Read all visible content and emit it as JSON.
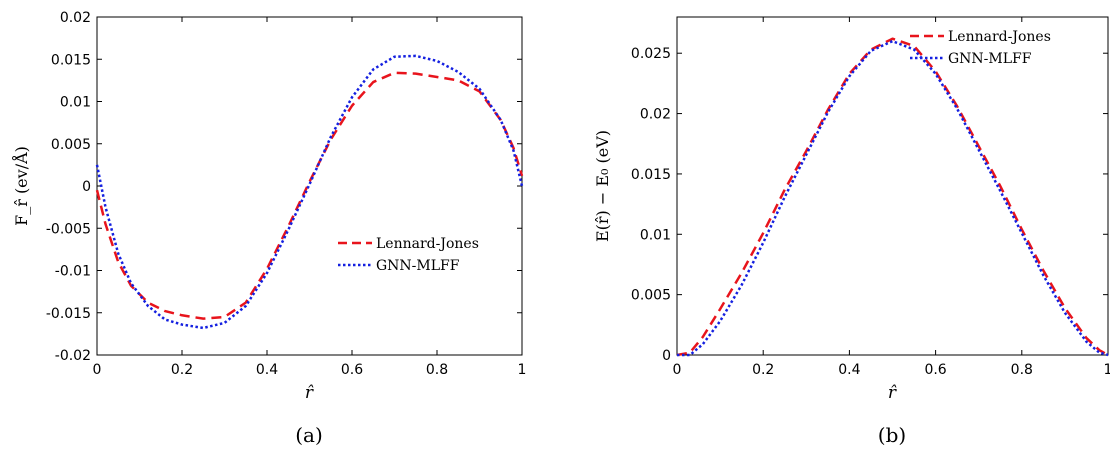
{
  "chart_data": [
    {
      "type": "line",
      "caption": "(a)",
      "xlabel": "r̂",
      "ylabel": "F_r̂ (ev/Å)",
      "xlim": [
        0,
        1
      ],
      "ylim": [
        -0.02,
        0.02
      ],
      "xticks": [
        0,
        0.2,
        0.4,
        0.6,
        0.8,
        1
      ],
      "xtick_labels": [
        "0",
        "0.2",
        "0.4",
        "0.6",
        "0.8",
        "1"
      ],
      "yticks": [
        -0.02,
        -0.015,
        -0.01,
        -0.005,
        0,
        0.005,
        0.01,
        0.015,
        0.02
      ],
      "ytick_labels": [
        "-0.02",
        "-0.015",
        "-0.01",
        "-0.005",
        "0",
        "0.005",
        "0.01",
        "0.015",
        "0.02"
      ],
      "legend_position": "center-right",
      "series": [
        {
          "name": "Lennard-Jones",
          "color": "#e8141c",
          "style": "dashed",
          "x": [
            0,
            0.02,
            0.05,
            0.08,
            0.12,
            0.16,
            0.2,
            0.25,
            0.3,
            0.35,
            0.4,
            0.45,
            0.5,
            0.55,
            0.6,
            0.65,
            0.7,
            0.75,
            0.8,
            0.85,
            0.9,
            0.95,
            0.98,
            1.0
          ],
          "y": [
            -0.0005,
            -0.0045,
            -0.009,
            -0.0118,
            -0.0138,
            -0.0148,
            -0.0153,
            -0.0157,
            -0.0155,
            -0.0138,
            -0.0098,
            -0.0048,
            0.0005,
            0.0055,
            0.0095,
            0.0123,
            0.0134,
            0.0133,
            0.0129,
            0.0125,
            0.0112,
            0.0078,
            0.0045,
            0.0012
          ]
        },
        {
          "name": "GNN-MLFF",
          "color": "#1420e0",
          "style": "dotted",
          "x": [
            0,
            0.02,
            0.05,
            0.08,
            0.12,
            0.16,
            0.2,
            0.25,
            0.3,
            0.35,
            0.4,
            0.45,
            0.5,
            0.55,
            0.6,
            0.65,
            0.7,
            0.75,
            0.8,
            0.85,
            0.9,
            0.95,
            0.98,
            1.0
          ],
          "y": [
            0.0025,
            -0.0025,
            -0.008,
            -0.0115,
            -0.0142,
            -0.0158,
            -0.0164,
            -0.0168,
            -0.0162,
            -0.0142,
            -0.0103,
            -0.0052,
            0.0002,
            0.0058,
            0.0105,
            0.0138,
            0.0153,
            0.0154,
            0.0148,
            0.0135,
            0.0115,
            0.0078,
            0.0042,
            0.0
          ]
        }
      ]
    },
    {
      "type": "line",
      "caption": "(b)",
      "xlabel": "r̂",
      "ylabel": "E(r̂) − E₀ (eV)",
      "xlim": [
        0,
        1
      ],
      "ylim": [
        0,
        0.028
      ],
      "xticks": [
        0,
        0.2,
        0.4,
        0.6,
        0.8,
        1
      ],
      "xtick_labels": [
        "0",
        "0.2",
        "0.4",
        "0.6",
        "0.8",
        "1"
      ],
      "yticks": [
        0,
        0.005,
        0.01,
        0.015,
        0.02,
        0.025
      ],
      "ytick_labels": [
        "0",
        "0.005",
        "0.01",
        "0.015",
        "0.02",
        "0.025"
      ],
      "legend_position": "top-right",
      "series": [
        {
          "name": "Lennard-Jones",
          "color": "#e8141c",
          "style": "dashed",
          "x": [
            0,
            0.03,
            0.06,
            0.1,
            0.15,
            0.2,
            0.25,
            0.3,
            0.35,
            0.4,
            0.45,
            0.5,
            0.55,
            0.6,
            0.65,
            0.7,
            0.75,
            0.8,
            0.85,
            0.9,
            0.95,
            0.98,
            1.0
          ],
          "y": [
            0,
            0.0002,
            0.0015,
            0.0038,
            0.0068,
            0.0101,
            0.0137,
            0.0169,
            0.0203,
            0.0233,
            0.0253,
            0.0262,
            0.0256,
            0.0235,
            0.0206,
            0.0173,
            0.014,
            0.0104,
            0.007,
            0.0039,
            0.0014,
            0.0004,
            0.0
          ]
        },
        {
          "name": "GNN-MLFF",
          "color": "#1420e0",
          "style": "dotted",
          "x": [
            0,
            0.03,
            0.06,
            0.1,
            0.15,
            0.2,
            0.25,
            0.3,
            0.35,
            0.4,
            0.45,
            0.5,
            0.55,
            0.6,
            0.65,
            0.7,
            0.75,
            0.8,
            0.85,
            0.9,
            0.95,
            0.98,
            1.0
          ],
          "y": [
            0,
            0.0,
            0.0009,
            0.0028,
            0.0058,
            0.0093,
            0.0131,
            0.0166,
            0.0201,
            0.0231,
            0.0252,
            0.026,
            0.0253,
            0.0233,
            0.0204,
            0.017,
            0.0136,
            0.0101,
            0.0066,
            0.0035,
            0.0011,
            0.0002,
            0.0
          ]
        }
      ]
    }
  ]
}
